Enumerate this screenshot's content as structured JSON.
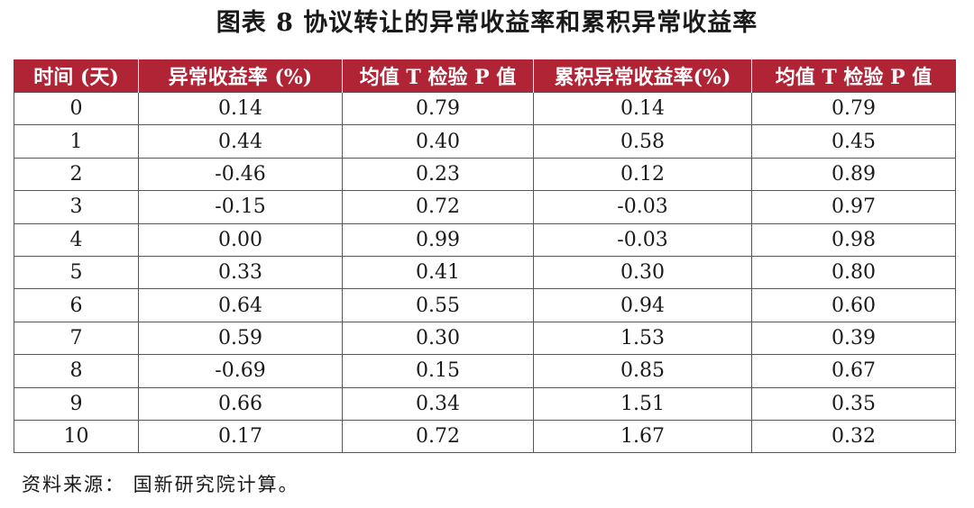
{
  "title": "图表 8  协议转让的异常收益率和累积异常收益率",
  "table": {
    "headers": [
      "时间 (天)",
      "异常收益率 (%)",
      "均值 T 检验 P 值",
      "累积异常收益率(%)",
      "均值 T 检验 P 值"
    ],
    "rows": [
      [
        "0",
        "0.14",
        "0.79",
        "0.14",
        "0.79"
      ],
      [
        "1",
        "0.44",
        "0.40",
        "0.58",
        "0.45"
      ],
      [
        "2",
        "-0.46",
        "0.23",
        "0.12",
        "0.89"
      ],
      [
        "3",
        "-0.15",
        "0.72",
        "-0.03",
        "0.97"
      ],
      [
        "4",
        "0.00",
        "0.99",
        "-0.03",
        "0.98"
      ],
      [
        "5",
        "0.33",
        "0.41",
        "0.30",
        "0.80"
      ],
      [
        "6",
        "0.64",
        "0.55",
        "0.94",
        "0.60"
      ],
      [
        "7",
        "0.59",
        "0.30",
        "1.53",
        "0.39"
      ],
      [
        "8",
        "-0.69",
        "0.15",
        "0.85",
        "0.67"
      ],
      [
        "9",
        "0.66",
        "0.34",
        "1.51",
        "0.35"
      ],
      [
        "10",
        "0.17",
        "0.72",
        "1.67",
        "0.32"
      ]
    ]
  },
  "source": "资料来源： 国新研究院计算。",
  "colors": {
    "header_background": "#b12436",
    "header_text": "#ffffff",
    "grid_line": "#555555"
  }
}
